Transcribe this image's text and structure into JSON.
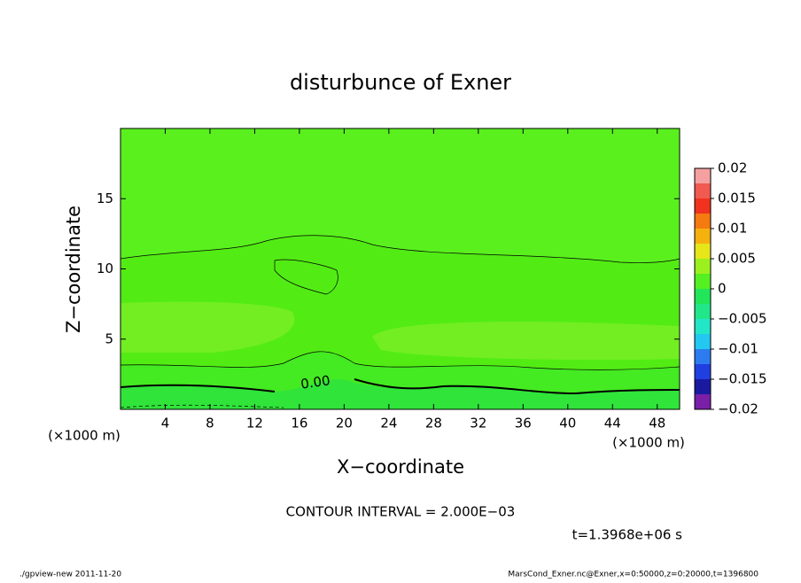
{
  "chart_data": {
    "type": "contour",
    "title": "disturbunce of Exner",
    "x_label": "X−coordinate",
    "y_label": "Z−coordinate",
    "x_unit": "(×1000 m)",
    "x_unit_right": "(×1000 m)",
    "contour_label": "0.00",
    "contour_interval": "CONTOUR INTERVAL = 2.000E−03",
    "time": "t=1.3968e+06 s",
    "footer_left": "./gpview-new  2011-11-20",
    "footer_right": "MarsCond_Exner.nc@Exner,x=0:50000,z=0:20000,t=1396800",
    "xlim": [
      0,
      50
    ],
    "ylim": [
      0,
      20
    ],
    "xticks": [
      4,
      8,
      12,
      16,
      20,
      24,
      28,
      32,
      36,
      40,
      44,
      48
    ],
    "yticks": [
      5,
      10,
      15
    ],
    "colorbar": {
      "lim": [
        -0.02,
        0.02
      ],
      "ticks": [
        0.02,
        0.015,
        0.01,
        0.005,
        0,
        {
          "value": -0.005,
          "label": "−0.005"
        },
        {
          "value": -0.01,
          "label": "−0.01"
        },
        {
          "value": -0.015,
          "label": "−0.015"
        },
        {
          "value": -0.02,
          "label": "−0.02"
        }
      ],
      "levels": [
        -0.02,
        -0.0175,
        -0.015,
        -0.0125,
        -0.01,
        -0.0075,
        -0.005,
        -0.0025,
        0,
        0.0025,
        0.005,
        0.0075,
        0.01,
        0.0125,
        0.015,
        0.0175,
        0.02
      ],
      "colors": [
        "#7a1fa8",
        "#1a1aa0",
        "#1f3fe0",
        "#2c7cf0",
        "#22c8f0",
        "#22e6c8",
        "#22e68a",
        "#22e65a",
        "#55f022",
        "#9cf01e",
        "#e6e61a",
        "#f5b20f",
        "#f57a0f",
        "#f0321e",
        "#f05a50",
        "#f5a0a0"
      ]
    }
  }
}
